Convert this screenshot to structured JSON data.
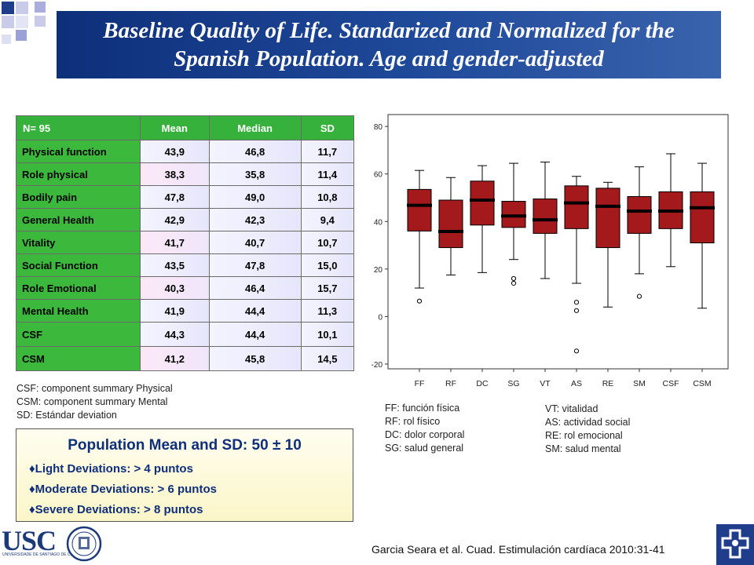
{
  "title": {
    "line1": "Baseline Quality of Life. Standarized and Normalized for the",
    "line2": "Spanish Population. Age and gender-adjusted"
  },
  "table": {
    "headers": [
      "N= 95",
      "Mean",
      "Median",
      "SD"
    ],
    "rows": [
      {
        "label": "Physical function",
        "mean": "43,9",
        "median": "46,8",
        "sd": "11,7"
      },
      {
        "label": "Role physical",
        "mean": "38,3",
        "median": "35,8",
        "sd": "11,4"
      },
      {
        "label": "Bodily pain",
        "mean": "47,8",
        "median": "49,0",
        "sd": "10,8"
      },
      {
        "label": "General Health",
        "mean": "42,9",
        "median": "42,3",
        "sd": "9,4"
      },
      {
        "label": "Vitality",
        "mean": "41,7",
        "median": "40,7",
        "sd": "10,7"
      },
      {
        "label": "Social Function",
        "mean": "43,5",
        "median": "47,8",
        "sd": "15,0"
      },
      {
        "label": "Role Emotional",
        "mean": "40,3",
        "median": "46,4",
        "sd": "15,7"
      },
      {
        "label": "Mental Health",
        "mean": "41,9",
        "median": "44,4",
        "sd": "11,3"
      },
      {
        "label": "CSF",
        "mean": "44,3",
        "median": "44,4",
        "sd": "10,1"
      },
      {
        "label": "CSM",
        "mean": "41,2",
        "median": "45,8",
        "sd": "14,5"
      }
    ]
  },
  "table_notes": [
    "CSF: component summary Physical",
    "CSM: component summary Mental",
    "SD: Estándar deviation"
  ],
  "population": {
    "title": "Population Mean and SD: 50 ± 10",
    "items": [
      "♦Light Deviations:  > 4 puntos",
      "♦Moderate Deviations: > 6 puntos",
      "♦Severe Deviations: > 8 puntos"
    ]
  },
  "legend_left": [
    "FF: función física",
    "RF: rol físico",
    "DC: dolor corporal",
    "SG: salud general"
  ],
  "legend_right": [
    "VT: vitalidad",
    "AS: actividad social",
    "RE: rol emocional",
    "SM: salud mental"
  ],
  "citation": "Garcia Seara et al. Cuad. Estimulación cardíaca 2010:31-41",
  "logo": {
    "text": "USC",
    "subtext": "UNIVERSIDADE DE SANTIAGO DE COMPOSTELA"
  },
  "colors": {
    "box_fill": "#a3191c",
    "banner": "#1a3f8f",
    "table_green": "#3cb83c",
    "text_blue": "#0f2f7a"
  },
  "chart_data": {
    "type": "boxplot",
    "categories": [
      "FF",
      "RF",
      "DC",
      "SG",
      "VT",
      "AS",
      "RE",
      "SM",
      "CSF",
      "CSM"
    ],
    "ylim": [
      -22,
      85
    ],
    "yticks": [
      -20,
      0,
      20,
      40,
      60,
      80
    ],
    "boxes": [
      {
        "min": 12,
        "q1": 36,
        "median": 46.8,
        "q3": 53.5,
        "max": 61.5,
        "outliers": [
          6.5
        ]
      },
      {
        "min": 17.5,
        "q1": 29,
        "median": 35.8,
        "q3": 49,
        "max": 58.5,
        "outliers": []
      },
      {
        "min": 18.5,
        "q1": 38.5,
        "median": 49,
        "q3": 57,
        "max": 63.5,
        "outliers": []
      },
      {
        "min": 24,
        "q1": 37.5,
        "median": 42.3,
        "q3": 48.5,
        "max": 64.5,
        "outliers": [
          14,
          16
        ]
      },
      {
        "min": 16,
        "q1": 35,
        "median": 40.7,
        "q3": 49.5,
        "max": 65,
        "outliers": []
      },
      {
        "min": 14,
        "q1": 37,
        "median": 47.8,
        "q3": 55,
        "max": 59,
        "outliers": [
          2.5,
          6,
          -14.5
        ]
      },
      {
        "min": 4,
        "q1": 29,
        "median": 46.4,
        "q3": 54,
        "max": 56.5,
        "outliers": []
      },
      {
        "min": 18,
        "q1": 35,
        "median": 44.4,
        "q3": 50.5,
        "max": 63,
        "outliers": [
          8.5
        ]
      },
      {
        "min": 21,
        "q1": 37,
        "median": 44.4,
        "q3": 52.5,
        "max": 68.5,
        "outliers": []
      },
      {
        "min": 3.5,
        "q1": 31,
        "median": 45.8,
        "q3": 52.5,
        "max": 64.5,
        "outliers": []
      }
    ]
  }
}
